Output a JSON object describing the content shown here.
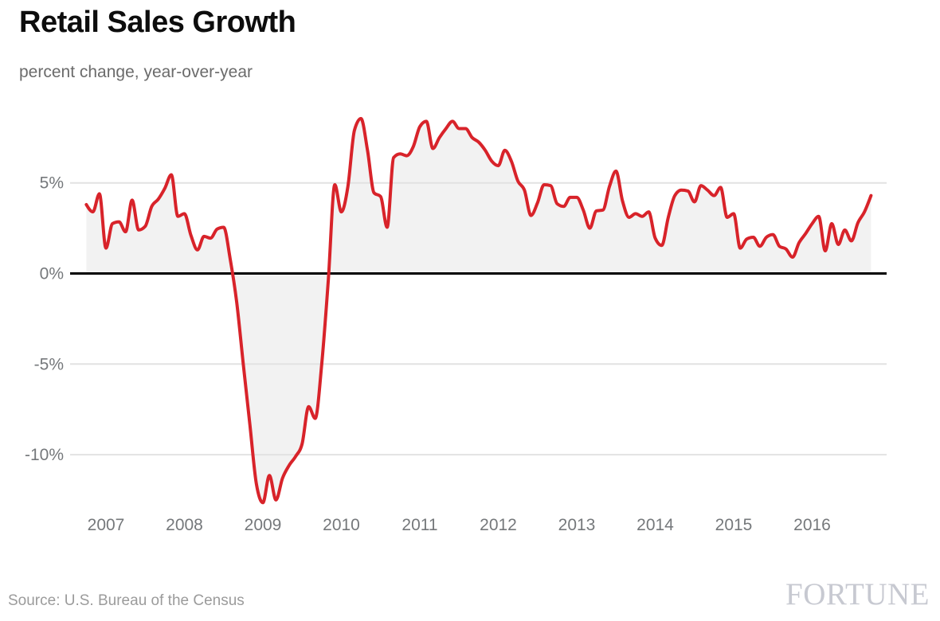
{
  "branding": {
    "wordmark": "FORTUNE"
  },
  "chart_data": {
    "type": "line",
    "title": "Retail Sales Growth",
    "subtitle": "percent change, year-over-year",
    "source": "Source: U.S. Bureau of the Census",
    "frequency": "monthly",
    "fill_to_zero": true,
    "grid": "horizontal-only",
    "legend": "none",
    "x_range": [
      "2006-10",
      "2016-10"
    ],
    "ylim": [
      -13.8,
      9.3
    ],
    "x_ticks": [
      "2007",
      "2008",
      "2009",
      "2010",
      "2011",
      "2012",
      "2013",
      "2014",
      "2015",
      "2016"
    ],
    "y_ticks": [
      {
        "label": "5%",
        "value": 5
      },
      {
        "label": "0%",
        "value": 0
      },
      {
        "label": "-5%",
        "value": -5
      },
      {
        "label": "-10%",
        "value": -10
      }
    ],
    "months": [
      "2006-10",
      "2006-11",
      "2006-12",
      "2007-01",
      "2007-02",
      "2007-03",
      "2007-04",
      "2007-05",
      "2007-06",
      "2007-07",
      "2007-08",
      "2007-09",
      "2007-10",
      "2007-11",
      "2007-12",
      "2008-01",
      "2008-02",
      "2008-03",
      "2008-04",
      "2008-05",
      "2008-06",
      "2008-07",
      "2008-08",
      "2008-09",
      "2008-10",
      "2008-11",
      "2008-12",
      "2009-01",
      "2009-02",
      "2009-03",
      "2009-04",
      "2009-05",
      "2009-06",
      "2009-07",
      "2009-08",
      "2009-09",
      "2009-10",
      "2009-11",
      "2009-12",
      "2010-01",
      "2010-02",
      "2010-03",
      "2010-04",
      "2010-05",
      "2010-06",
      "2010-07",
      "2010-08",
      "2010-09",
      "2010-10",
      "2010-11",
      "2010-12",
      "2011-01",
      "2011-02",
      "2011-03",
      "2011-04",
      "2011-05",
      "2011-06",
      "2011-07",
      "2011-08",
      "2011-09",
      "2011-10",
      "2011-11",
      "2011-12",
      "2012-01",
      "2012-02",
      "2012-03",
      "2012-04",
      "2012-05",
      "2012-06",
      "2012-07",
      "2012-08",
      "2012-09",
      "2012-10",
      "2012-11",
      "2012-12",
      "2013-01",
      "2013-02",
      "2013-03",
      "2013-04",
      "2013-05",
      "2013-06",
      "2013-07",
      "2013-08",
      "2013-09",
      "2013-10",
      "2013-11",
      "2013-12",
      "2014-01",
      "2014-02",
      "2014-03",
      "2014-04",
      "2014-05",
      "2014-06",
      "2014-07",
      "2014-08",
      "2014-09",
      "2014-10",
      "2014-11",
      "2014-12",
      "2015-01",
      "2015-02",
      "2015-03",
      "2015-04",
      "2015-05",
      "2015-06",
      "2015-07",
      "2015-08",
      "2015-09",
      "2015-10",
      "2015-11",
      "2015-12",
      "2016-01",
      "2016-02",
      "2016-03",
      "2016-04",
      "2016-05",
      "2016-06",
      "2016-07",
      "2016-08",
      "2016-09",
      "2016-10"
    ],
    "values": [
      3.8,
      3.4,
      4.4,
      1.4,
      2.75,
      2.85,
      2.3,
      4.05,
      2.4,
      2.6,
      3.7,
      4.1,
      4.7,
      5.45,
      3.15,
      3.3,
      2.1,
      1.3,
      2.05,
      1.95,
      2.45,
      2.55,
      0.8,
      -1.6,
      -5.0,
      -8.3,
      -11.6,
      -12.65,
      -11.15,
      -12.5,
      -11.3,
      -10.6,
      -10.1,
      -9.4,
      -7.35,
      -8.0,
      -5.0,
      -0.4,
      4.9,
      3.4,
      4.8,
      7.9,
      8.55,
      6.8,
      4.45,
      4.25,
      2.55,
      6.4,
      6.6,
      6.5,
      7.0,
      8.1,
      8.4,
      6.9,
      7.5,
      8.0,
      8.4,
      8.0,
      8.0,
      7.5,
      7.25,
      6.8,
      6.2,
      5.95,
      6.8,
      6.2,
      5.1,
      4.6,
      3.2,
      3.9,
      4.9,
      4.85,
      3.85,
      3.7,
      4.2,
      4.2,
      3.5,
      2.5,
      3.45,
      3.5,
      4.8,
      5.65,
      4.0,
      3.1,
      3.3,
      3.15,
      3.4,
      1.95,
      1.55,
      3.1,
      4.3,
      4.6,
      4.55,
      3.95,
      4.85,
      4.6,
      4.3,
      4.75,
      3.1,
      3.3,
      1.4,
      1.9,
      2.0,
      1.5,
      2.0,
      2.15,
      1.5,
      1.35,
      0.9,
      1.7,
      2.2,
      2.75,
      3.15,
      1.25,
      2.75,
      1.6,
      2.4,
      1.8,
      2.8,
      3.4,
      4.3
    ],
    "colors": {
      "line": "#d8232a",
      "fill": "#f2f2f2",
      "zero_line": "#000000",
      "gridline": "#e2e2e2",
      "tick_label": "#75787b",
      "title": "#0d0d0d",
      "subtitle": "#6b6b6b",
      "source": "#9b9b9b",
      "brand": "#c7c9d1"
    }
  }
}
